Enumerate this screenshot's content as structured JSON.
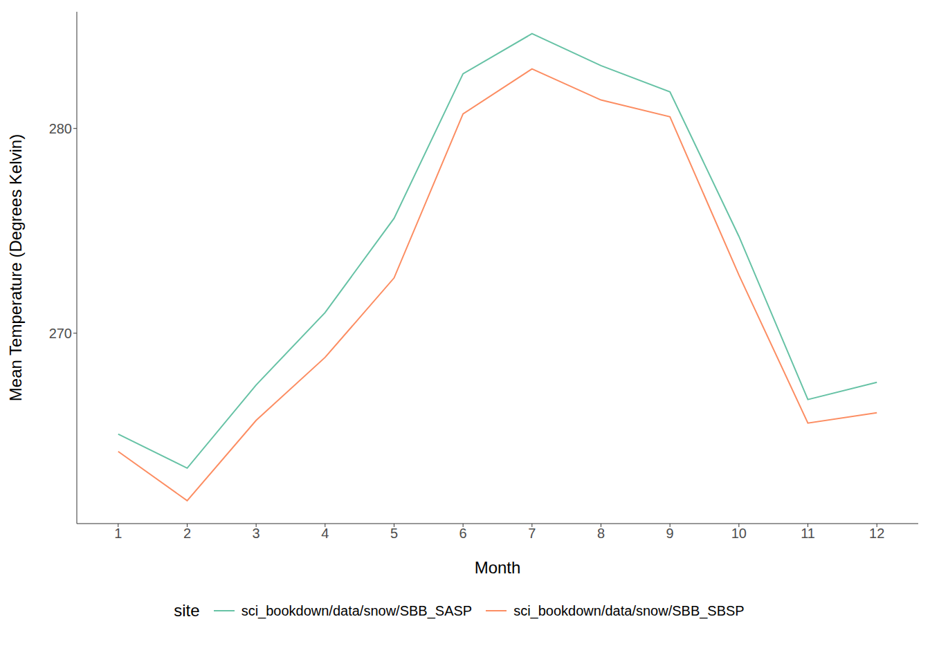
{
  "chart_data": {
    "type": "line",
    "x_label": "Month",
    "y_label": "Mean Temperature (Degrees Kelvin)",
    "legend_title": "site",
    "legend": "bottom",
    "grid": false,
    "x": [
      1,
      2,
      3,
      4,
      5,
      6,
      7,
      8,
      9,
      10,
      11,
      12
    ],
    "xlim": [
      0.4,
      12.6
    ],
    "xticks": [
      1,
      2,
      3,
      4,
      5,
      6,
      7,
      8,
      9,
      10,
      11,
      12
    ],
    "ylim": [
      260.7,
      285.7
    ],
    "yticks": [
      270,
      280
    ],
    "series": [
      {
        "name": "sci_bookdown/data/snow/SBB_SASP",
        "color": "#66c2a5",
        "values": [
          265.07,
          263.41,
          267.47,
          271.01,
          275.61,
          282.67,
          284.63,
          283.07,
          281.79,
          274.73,
          266.76,
          267.6
        ]
      },
      {
        "name": "sci_bookdown/data/snow/SBB_SBSP",
        "color": "#fc8d62",
        "values": [
          264.22,
          261.82,
          265.74,
          268.82,
          272.7,
          280.71,
          282.91,
          281.39,
          280.57,
          272.84,
          265.61,
          266.11
        ]
      }
    ]
  }
}
